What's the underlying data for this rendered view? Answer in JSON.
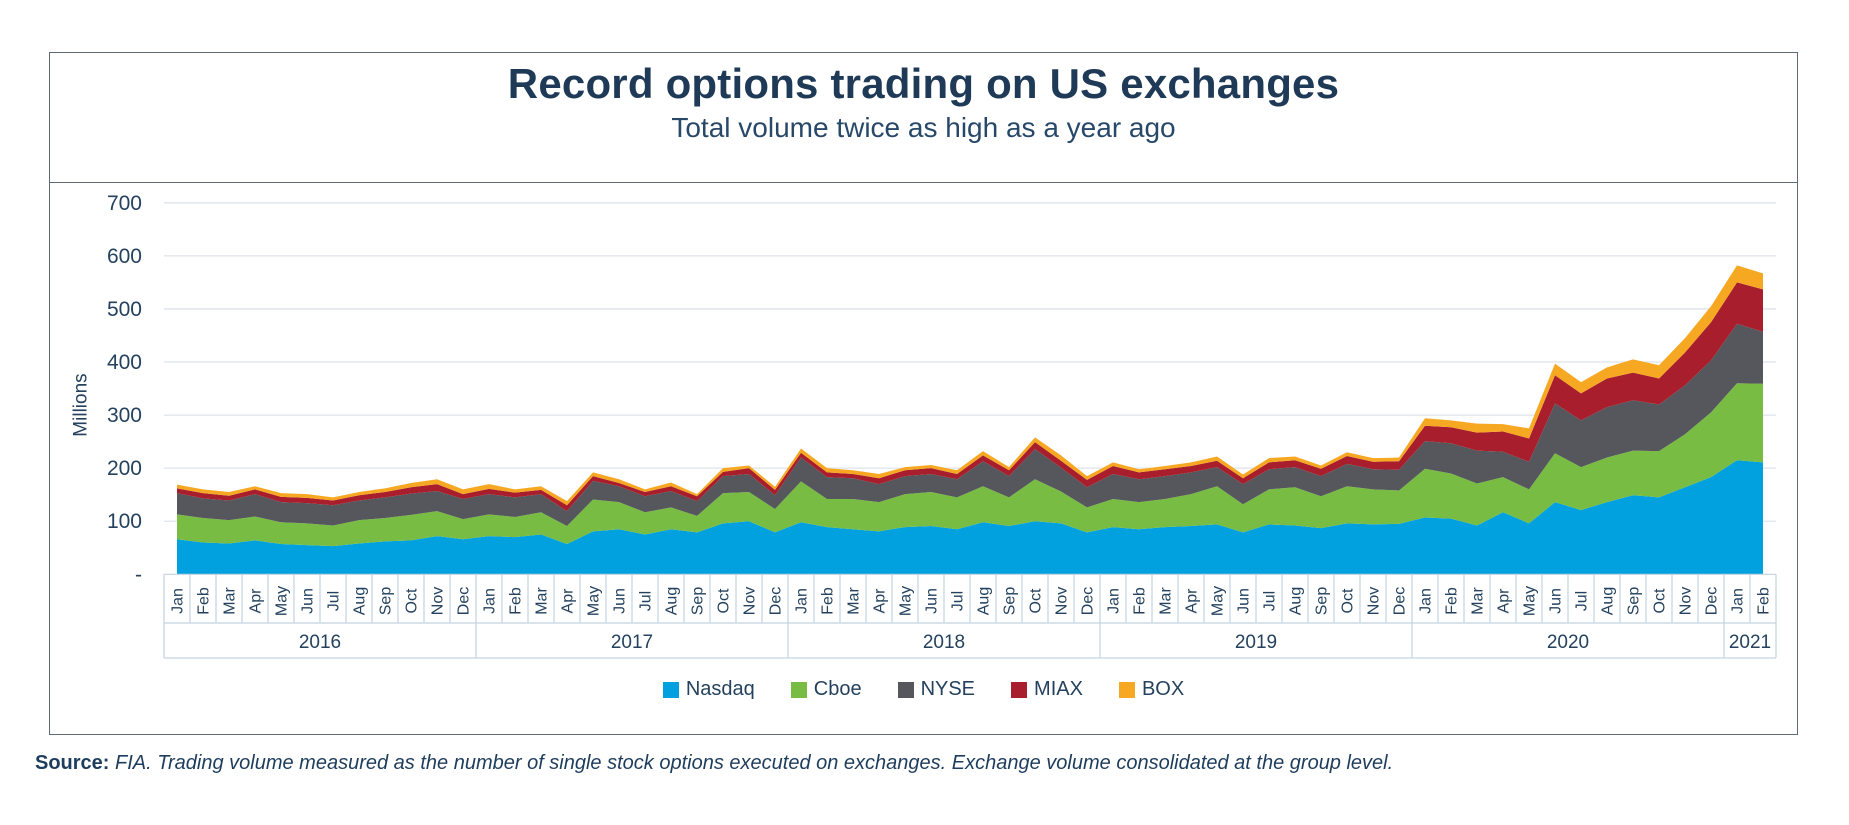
{
  "header": {
    "title": "Record options trading on US exchanges",
    "subtitle": "Total volume twice as high as a year ago"
  },
  "footer": {
    "source_label": "Source:",
    "note": " FIA. Trading volume measured as the number of single stock options executed on exchanges. Exchange volume consolidated at the group level."
  },
  "colors": {
    "title_text": "#1f3a57",
    "axis_text": "#24425e",
    "card_border": "#5e6b76",
    "gridline": "#dde4eb",
    "table_border": "#c3d3e2",
    "nasdaq": "#00a1de",
    "cboe": "#78bc43",
    "nyse": "#55575c",
    "miax": "#a81e2c",
    "box": "#f7a823"
  },
  "chart_data": {
    "type": "area",
    "stacked": true,
    "title": "Record options trading on US exchanges",
    "subtitle": "Total volume twice as high as a year ago",
    "ylabel": "Millions",
    "ylim": [
      0,
      700
    ],
    "grid": true,
    "legend_position": "bottom",
    "y_ticks": [
      {
        "label": "700",
        "value": 700
      },
      {
        "label": "600",
        "value": 600
      },
      {
        "label": "500",
        "value": 500
      },
      {
        "label": "400",
        "value": 400
      },
      {
        "label": "300",
        "value": 300
      },
      {
        "label": "200",
        "value": 200
      },
      {
        "label": "100",
        "value": 100
      },
      {
        "label": "-",
        "value": 0
      }
    ],
    "x_months": [
      "Jan",
      "Feb",
      "Mar",
      "Apr",
      "May",
      "Jun",
      "Jul",
      "Aug",
      "Sep",
      "Oct",
      "Nov",
      "Dec",
      "Jan",
      "Feb",
      "Mar",
      "Apr",
      "May",
      "Jun",
      "Jul",
      "Aug",
      "Sep",
      "Oct",
      "Nov",
      "Dec",
      "Jan",
      "Feb",
      "Mar",
      "Apr",
      "May",
      "Jun",
      "Jul",
      "Aug",
      "Sep",
      "Oct",
      "Nov",
      "Dec",
      "Jan",
      "Feb",
      "Mar",
      "Apr",
      "May",
      "Jun",
      "Jul",
      "Aug",
      "Sep",
      "Oct",
      "Nov",
      "Dec",
      "Jan",
      "Feb",
      "Mar",
      "Apr",
      "May",
      "Jun",
      "Jul",
      "Aug",
      "Sep",
      "Oct",
      "Nov",
      "Dec",
      "Jan",
      "Feb"
    ],
    "year_groups": [
      {
        "label": "2016",
        "months": 12
      },
      {
        "label": "2017",
        "months": 12
      },
      {
        "label": "2018",
        "months": 12
      },
      {
        "label": "2019",
        "months": 12
      },
      {
        "label": "2020",
        "months": 12
      },
      {
        "label": "2021",
        "months": 2
      }
    ],
    "series": [
      {
        "name": "Nasdaq",
        "color": "#00a1de",
        "values": [
          66,
          60,
          58,
          64,
          57,
          55,
          53,
          58,
          62,
          64,
          72,
          66,
          72,
          70,
          75,
          57,
          81,
          85,
          75,
          85,
          79,
          96,
          100,
          79,
          98,
          89,
          85,
          81,
          89,
          91,
          85,
          98,
          91,
          100,
          96,
          79,
          89,
          85,
          89,
          91,
          94,
          79,
          94,
          92,
          87,
          96,
          94,
          95,
          107,
          105,
          92,
          117,
          96,
          136,
          121,
          136,
          149,
          145,
          164,
          183,
          215,
          211
        ]
      },
      {
        "name": "Cboe",
        "color": "#78bc43",
        "values": [
          47,
          46,
          44,
          45,
          41,
          41,
          39,
          44,
          44,
          48,
          47,
          38,
          41,
          38,
          42,
          34,
          60,
          51,
          42,
          41,
          31,
          57,
          55,
          44,
          77,
          53,
          57,
          55,
          62,
          64,
          60,
          68,
          54,
          79,
          60,
          47,
          53,
          51,
          53,
          60,
          72,
          53,
          66,
          72,
          60,
          70,
          66,
          63,
          92,
          85,
          79,
          66,
          64,
          92,
          81,
          84,
          84,
          87,
          100,
          122,
          145,
          148
        ]
      },
      {
        "name": "NYSE",
        "color": "#55575c",
        "values": [
          40,
          37,
          37,
          42,
          38,
          38,
          38,
          37,
          39,
          40,
          38,
          38,
          38,
          37,
          34,
          28,
          35,
          30,
          30,
          31,
          28,
          32,
          34,
          26,
          45,
          41,
          39,
          34,
          34,
          34,
          34,
          47,
          40,
          57,
          45,
          38,
          47,
          43,
          43,
          41,
          36,
          38,
          38,
          38,
          38,
          42,
          38,
          39,
          52,
          57,
          62,
          48,
          52,
          94,
          88,
          95,
          95,
          88,
          92,
          98,
          112,
          98
        ]
      },
      {
        "name": "MIAX",
        "color": "#a81e2c",
        "values": [
          9,
          10,
          9,
          9,
          10,
          10,
          9,
          10,
          10,
          12,
          13,
          9,
          10,
          9,
          8,
          11,
          9,
          6,
          8,
          9,
          9,
          8,
          11,
          10,
          9,
          9,
          8,
          11,
          11,
          11,
          10,
          11,
          11,
          13,
          13,
          14,
          15,
          13,
          13,
          12,
          12,
          11,
          13,
          13,
          14,
          15,
          14,
          16,
          29,
          30,
          34,
          38,
          44,
          53,
          51,
          54,
          52,
          49,
          62,
          72,
          78,
          80
        ]
      },
      {
        "name": "BOX",
        "color": "#f7a823",
        "values": [
          7,
          7,
          7,
          6,
          7,
          7,
          6,
          6,
          7,
          8,
          9,
          9,
          9,
          6,
          7,
          8,
          7,
          7,
          5,
          7,
          4,
          7,
          5,
          6,
          8,
          8,
          7,
          8,
          6,
          6,
          7,
          8,
          6,
          9,
          10,
          7,
          7,
          6,
          6,
          7,
          8,
          7,
          8,
          7,
          6,
          7,
          7,
          7,
          14,
          13,
          17,
          14,
          19,
          22,
          21,
          21,
          25,
          25,
          27,
          30,
          32,
          30
        ]
      }
    ]
  }
}
